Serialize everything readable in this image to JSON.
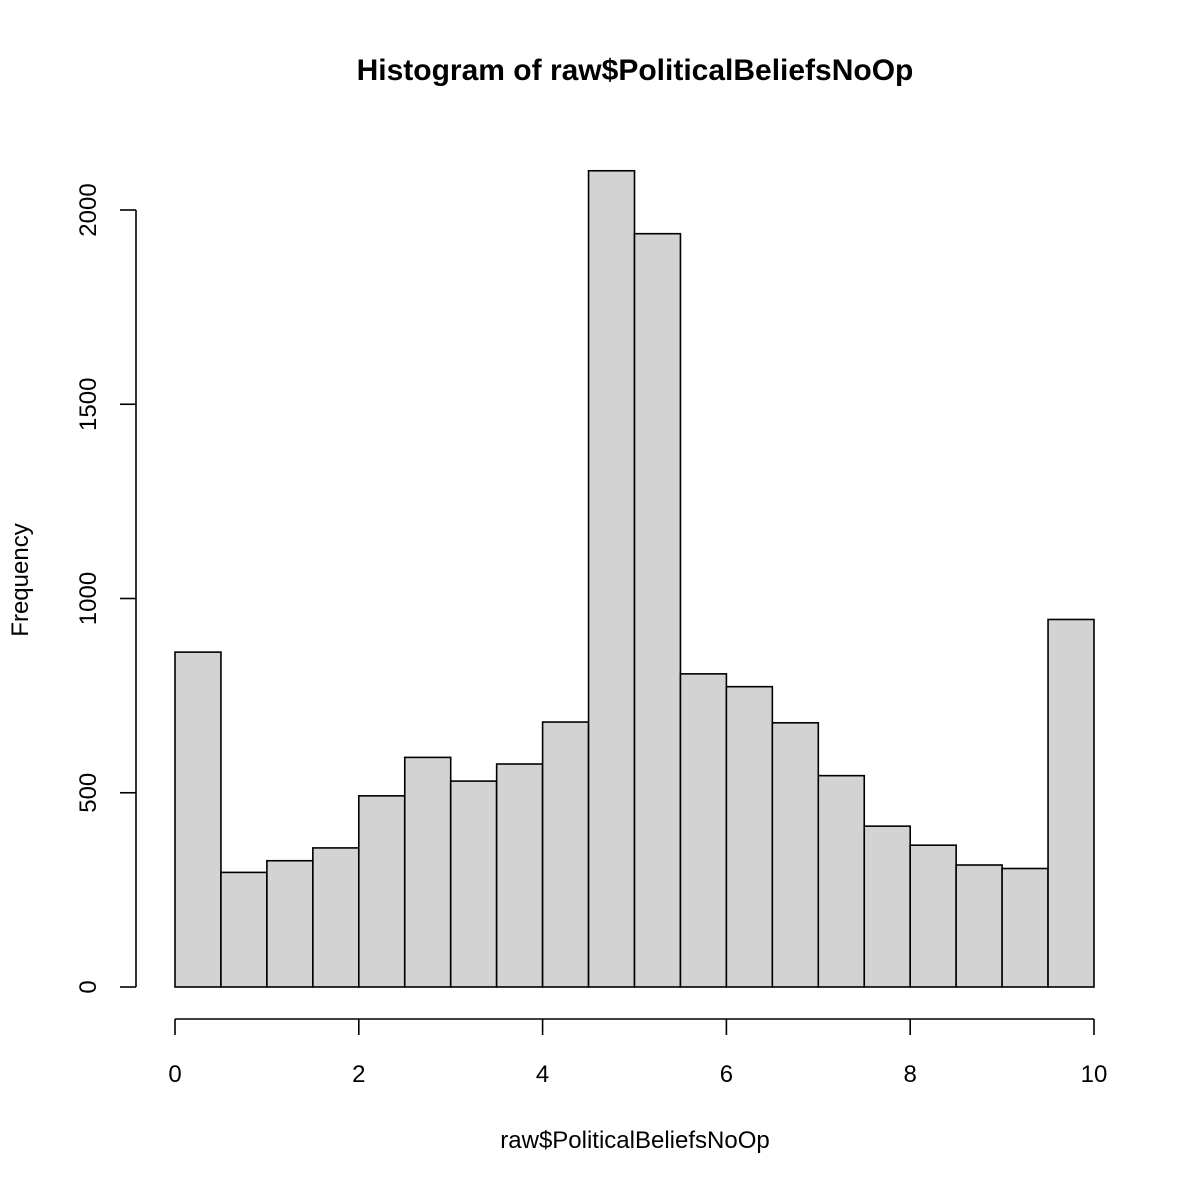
{
  "chart_data": {
    "type": "bar",
    "title": "Histogram of raw$PoliticalBeliefsNoOp",
    "xlabel": "raw$PoliticalBeliefsNoOp",
    "ylabel": "Frequency",
    "xlim": [
      0,
      10
    ],
    "ylim": [
      0,
      2100
    ],
    "x_ticks": [
      "0",
      "2",
      "4",
      "6",
      "8",
      "10"
    ],
    "y_ticks": [
      "0",
      "500",
      "1000",
      "1500",
      "2000"
    ],
    "bin_width": 0.5,
    "bins": [
      {
        "start": 0.0,
        "end": 0.5,
        "value": 862
      },
      {
        "start": 0.5,
        "end": 1.0,
        "value": 295
      },
      {
        "start": 1.0,
        "end": 1.5,
        "value": 325
      },
      {
        "start": 1.5,
        "end": 2.0,
        "value": 358
      },
      {
        "start": 2.0,
        "end": 2.5,
        "value": 492
      },
      {
        "start": 2.5,
        "end": 3.0,
        "value": 591
      },
      {
        "start": 3.0,
        "end": 3.5,
        "value": 530
      },
      {
        "start": 3.5,
        "end": 4.0,
        "value": 574
      },
      {
        "start": 4.0,
        "end": 4.5,
        "value": 682
      },
      {
        "start": 4.5,
        "end": 5.0,
        "value": 2101
      },
      {
        "start": 5.0,
        "end": 5.5,
        "value": 1939
      },
      {
        "start": 5.5,
        "end": 6.0,
        "value": 806
      },
      {
        "start": 6.0,
        "end": 6.5,
        "value": 773
      },
      {
        "start": 6.5,
        "end": 7.0,
        "value": 680
      },
      {
        "start": 7.0,
        "end": 7.5,
        "value": 544
      },
      {
        "start": 7.5,
        "end": 8.0,
        "value": 414
      },
      {
        "start": 8.0,
        "end": 8.5,
        "value": 365
      },
      {
        "start": 8.5,
        "end": 9.0,
        "value": 314
      },
      {
        "start": 9.0,
        "end": 9.5,
        "value": 305
      },
      {
        "start": 9.5,
        "end": 10.0,
        "value": 946
      }
    ],
    "colors": {
      "bar_fill": "#d3d3d3",
      "bar_stroke": "#000000"
    },
    "grid": false,
    "legend": "none"
  }
}
